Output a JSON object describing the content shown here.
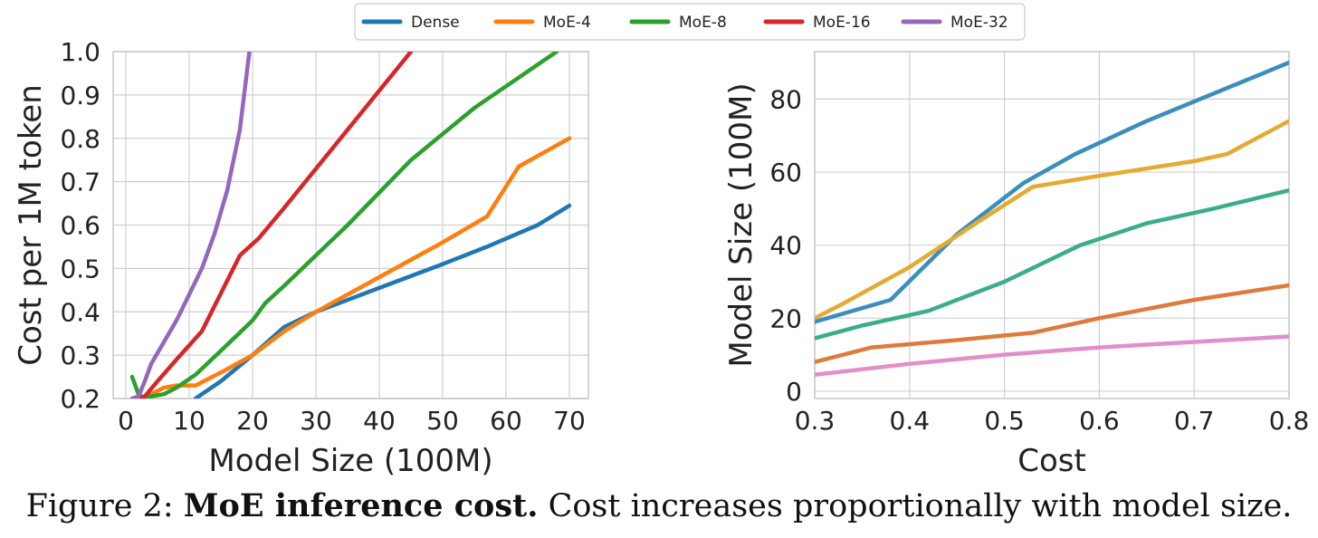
{
  "caption": {
    "label": "Figure 2:",
    "bold": "MoE inference cost.",
    "text": "Cost increases proportionally with model size."
  },
  "legend": {
    "placement": "top-center",
    "items": [
      {
        "name": "Dense",
        "color": "#1f77b4"
      },
      {
        "name": "MoE-4",
        "color": "#ff7f0e"
      },
      {
        "name": "MoE-8",
        "color": "#2ca02c"
      },
      {
        "name": "MoE-16",
        "color": "#d62728"
      },
      {
        "name": "MoE-32",
        "color": "#9467bd"
      }
    ]
  },
  "chart_data": [
    {
      "type": "line",
      "xlabel": "Model Size (100M)",
      "ylabel": "Cost per 1M token",
      "xlim": [
        -2,
        73
      ],
      "ylim": [
        0.2,
        1.0
      ],
      "xticks": [
        "0",
        "10",
        "20",
        "30",
        "40",
        "50",
        "60",
        "70"
      ],
      "yticks": [
        "0.2",
        "0.3",
        "0.4",
        "0.5",
        "0.6",
        "0.7",
        "0.8",
        "0.9",
        "1.0"
      ],
      "grid": true,
      "series": [
        {
          "name": "Dense",
          "color": "#1f77b4",
          "x": [
            11,
            15,
            20,
            25,
            30,
            40,
            50,
            57,
            65,
            70
          ],
          "y": [
            0.2,
            0.24,
            0.3,
            0.365,
            0.4,
            0.455,
            0.51,
            0.55,
            0.6,
            0.645
          ]
        },
        {
          "name": "MoE-4",
          "color": "#ff7f0e",
          "x": [
            2,
            4,
            6,
            8,
            11,
            15,
            20,
            25,
            30,
            40,
            50,
            57,
            62,
            70
          ],
          "y": [
            0.2,
            0.21,
            0.225,
            0.23,
            0.23,
            0.26,
            0.3,
            0.355,
            0.4,
            0.48,
            0.56,
            0.62,
            0.735,
            0.8
          ]
        },
        {
          "name": "MoE-8",
          "color": "#2ca02c",
          "x": [
            1,
            2,
            3,
            4,
            6,
            8,
            11,
            15,
            20,
            22,
            25,
            30,
            35,
            45,
            55,
            62,
            68
          ],
          "y": [
            0.25,
            0.21,
            0.2,
            0.205,
            0.21,
            0.225,
            0.255,
            0.31,
            0.38,
            0.42,
            0.46,
            0.53,
            0.6,
            0.75,
            0.87,
            0.94,
            1.0
          ]
        },
        {
          "name": "MoE-16",
          "color": "#d62728",
          "x": [
            2,
            3,
            5,
            8,
            12,
            18,
            21,
            25,
            30,
            35,
            40,
            45
          ],
          "y": [
            0.2,
            0.205,
            0.24,
            0.29,
            0.355,
            0.53,
            0.57,
            0.64,
            0.73,
            0.82,
            0.91,
            1.0
          ]
        },
        {
          "name": "MoE-32",
          "color": "#9467bd",
          "x": [
            1,
            2,
            3,
            4,
            6,
            8,
            10,
            12,
            14,
            16,
            18,
            19.5
          ],
          "y": [
            0.2,
            0.205,
            0.24,
            0.28,
            0.33,
            0.38,
            0.44,
            0.5,
            0.58,
            0.68,
            0.82,
            1.0
          ]
        }
      ]
    },
    {
      "type": "line",
      "xlabel": "Cost",
      "ylabel": "Model Size (100M)",
      "xlim": [
        0.3,
        0.8
      ],
      "ylim": [
        -2,
        93
      ],
      "xticks": [
        "0.3",
        "0.4",
        "0.5",
        "0.6",
        "0.7",
        "0.8"
      ],
      "yticks": [
        "0",
        "20",
        "40",
        "60",
        "80"
      ],
      "grid": true,
      "series": [
        {
          "color": "#3a8ebf",
          "x": [
            0.3,
            0.38,
            0.45,
            0.52,
            0.575,
            0.65,
            0.8
          ],
          "y": [
            19,
            25,
            43,
            57,
            65,
            74,
            90
          ]
        },
        {
          "color": "#e6a934",
          "x": [
            0.3,
            0.33,
            0.4,
            0.47,
            0.53,
            0.6,
            0.7,
            0.735,
            0.8
          ],
          "y": [
            20,
            24,
            34,
            46,
            56,
            59,
            63,
            65,
            74
          ]
        },
        {
          "color": "#3aae8a",
          "x": [
            0.3,
            0.35,
            0.42,
            0.5,
            0.58,
            0.65,
            0.72,
            0.8
          ],
          "y": [
            14.5,
            18,
            22,
            30,
            40,
            46,
            50,
            55
          ]
        },
        {
          "color": "#de7b3a",
          "x": [
            0.3,
            0.36,
            0.45,
            0.53,
            0.6,
            0.7,
            0.8
          ],
          "y": [
            8,
            12,
            14,
            16,
            20,
            25,
            29
          ]
        },
        {
          "color": "#e08fc8",
          "x": [
            0.3,
            0.4,
            0.5,
            0.6,
            0.7,
            0.8
          ],
          "y": [
            4.5,
            7.5,
            10,
            12,
            13.5,
            15
          ]
        }
      ]
    }
  ]
}
